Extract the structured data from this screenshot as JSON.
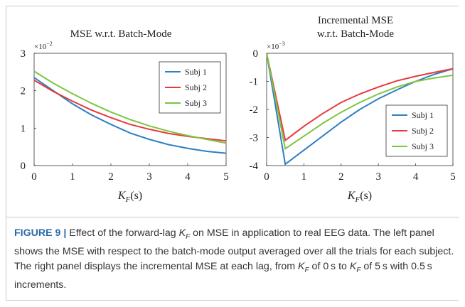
{
  "chart_data": [
    {
      "type": "line",
      "title": [
        "MSE w.r.t. Batch-Mode"
      ],
      "multiplier": {
        "base": "×10",
        "exponent": "−2"
      },
      "xlabel": {
        "symbol": "K",
        "subscript": "F",
        "unit": "(s)"
      },
      "x": [
        0,
        0.5,
        1,
        1.5,
        2,
        2.5,
        3,
        3.5,
        4,
        4.5,
        5
      ],
      "xlim": [
        0,
        5
      ],
      "xticks": [
        0,
        1,
        2,
        3,
        4,
        5
      ],
      "ylim": [
        0,
        3
      ],
      "yticks": [
        0,
        1,
        2,
        3
      ],
      "legend": "upper right",
      "series": [
        {
          "name": "Subj 1",
          "color": "#2f7fc1",
          "values": [
            2.35,
            2.0,
            1.65,
            1.35,
            1.1,
            0.87,
            0.7,
            0.56,
            0.46,
            0.38,
            0.33
          ]
        },
        {
          "name": "Subj 2",
          "color": "#e8393b",
          "values": [
            2.28,
            1.98,
            1.72,
            1.48,
            1.28,
            1.1,
            0.97,
            0.86,
            0.78,
            0.72,
            0.66
          ]
        },
        {
          "name": "Subj 3",
          "color": "#7cc542",
          "values": [
            2.52,
            2.2,
            1.92,
            1.66,
            1.43,
            1.23,
            1.06,
            0.92,
            0.8,
            0.7,
            0.6
          ]
        }
      ]
    },
    {
      "type": "line",
      "title": [
        "Incremental MSE",
        "w.r.t. Batch-Mode"
      ],
      "multiplier": {
        "base": "×10",
        "exponent": "−3"
      },
      "xlabel": {
        "symbol": "K",
        "subscript": "F",
        "unit": "(s)"
      },
      "x": [
        0,
        0.5,
        1,
        1.5,
        2,
        2.5,
        3,
        3.5,
        4,
        4.5,
        5
      ],
      "xlim": [
        0,
        5
      ],
      "xticks": [
        0,
        1,
        2,
        3,
        4,
        5
      ],
      "ylim": [
        -4,
        0
      ],
      "yticks": [
        0,
        -1,
        -2,
        -3,
        -4
      ],
      "legend": "center right",
      "series": [
        {
          "name": "Subj 1",
          "color": "#2f7fc1",
          "values": [
            0,
            -3.95,
            -3.45,
            -2.95,
            -2.45,
            -2.0,
            -1.62,
            -1.3,
            -1.0,
            -0.75,
            -0.55
          ]
        },
        {
          "name": "Subj 2",
          "color": "#e8393b",
          "values": [
            0,
            -3.1,
            -2.6,
            -2.15,
            -1.75,
            -1.45,
            -1.2,
            -0.98,
            -0.82,
            -0.68,
            -0.55
          ]
        },
        {
          "name": "Subj 3",
          "color": "#7cc542",
          "values": [
            0,
            -3.4,
            -2.95,
            -2.5,
            -2.1,
            -1.75,
            -1.45,
            -1.2,
            -1.0,
            -0.88,
            -0.78
          ]
        }
      ]
    }
  ],
  "caption": {
    "label": "FIGURE 9 |",
    "segments": [
      " Effect of the forward-lag ",
      "K",
      "F",
      " on MSE in application to real EEG data. The left panel shows the MSE with respect to the batch-mode output averaged over all the trials for each subject. The right panel displays the incremental MSE at each lag, from ",
      "K",
      "F",
      " of 0 s to ",
      "K",
      "F",
      " of 5 s with 0.5 s increments."
    ]
  }
}
